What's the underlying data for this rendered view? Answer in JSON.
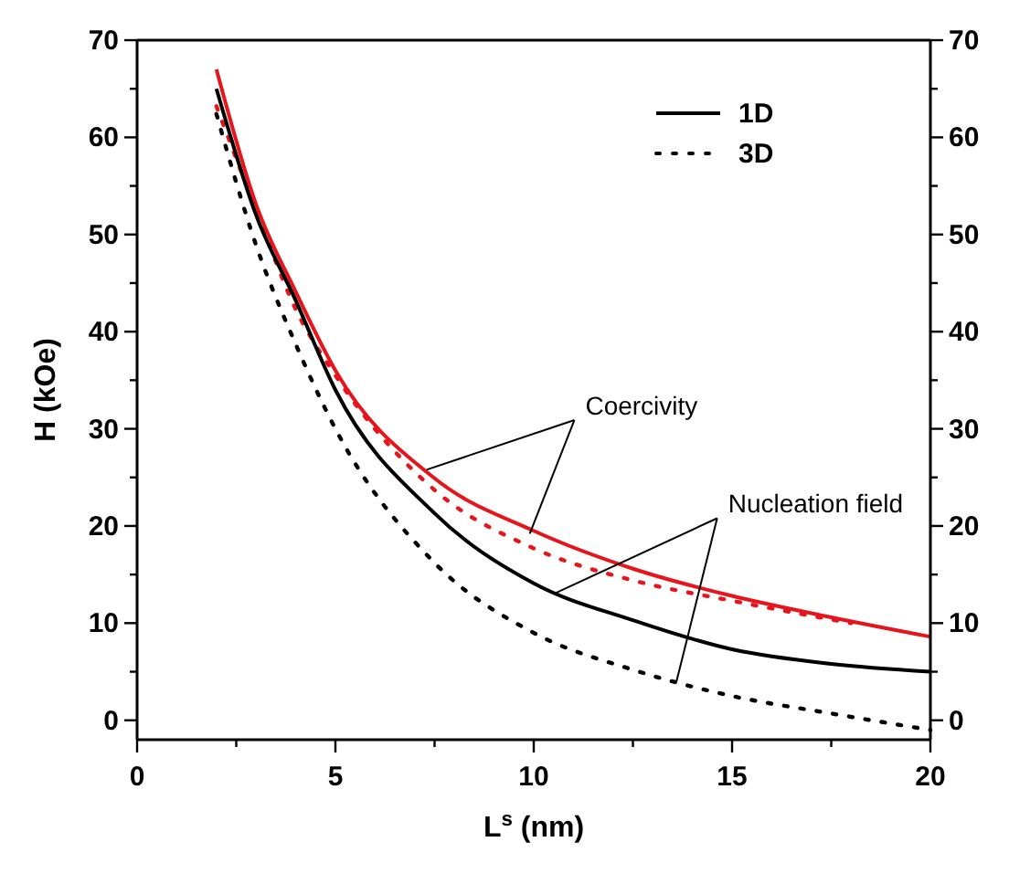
{
  "chart_data": {
    "type": "line",
    "xlabel": "L$^{s}$ (nm)",
    "ylabel": "H (kOe)",
    "xlim": [
      0,
      20
    ],
    "ylim": [
      -2,
      70
    ],
    "y2lim": [
      -2,
      70
    ],
    "xticks": [
      0,
      {
        "value": 2.5,
        "label": null
      },
      5,
      {
        "value": 7.5,
        "label": null
      },
      10,
      {
        "value": 12.5,
        "label": null
      },
      15,
      {
        "value": 17.5,
        "label": null
      },
      20
    ],
    "yticks": [
      0,
      {
        "value": 5,
        "label": null
      },
      10,
      {
        "value": 15,
        "label": null
      },
      20,
      {
        "value": 25,
        "label": null
      },
      30,
      {
        "value": 35,
        "label": null
      },
      40,
      {
        "value": 45,
        "label": null
      },
      50,
      {
        "value": 55,
        "label": null
      },
      60,
      {
        "value": 65,
        "label": null
      },
      70
    ],
    "y2ticks": [
      0,
      {
        "value": 5,
        "label": null
      },
      10,
      {
        "value": 15,
        "label": null
      },
      20,
      {
        "value": 25,
        "label": null
      },
      30,
      {
        "value": 35,
        "label": null
      },
      40,
      {
        "value": 45,
        "label": null
      },
      50,
      {
        "value": 55,
        "label": null
      },
      60,
      {
        "value": 65,
        "label": null
      },
      70
    ],
    "x": [
      2,
      3,
      4,
      5,
      7.5,
      10,
      12.5,
      15,
      17.5,
      20
    ],
    "series": [
      {
        "color": "#e8141b",
        "line_style": "solid",
        "values": [
          67,
          53.1,
          44.1,
          36,
          24.9,
          19.5,
          15.6,
          12.8,
          10.6,
          8.6
        ]
      },
      {
        "color": "#e8141b",
        "line_style": "dotted",
        "x": [
          2,
          3,
          4,
          5,
          7.5,
          10,
          12.5,
          15,
          18
        ],
        "values": [
          63.2,
          52.5,
          42.3,
          35.5,
          23.7,
          17.7,
          14.4,
          12.3,
          10
        ]
      },
      {
        "name": "1D",
        "color": "#000000",
        "line_style": "solid",
        "values": [
          65,
          52,
          43.2,
          34,
          21.3,
          14.1,
          10.3,
          7.3,
          5.8,
          5
        ]
      },
      {
        "name": "3D",
        "color": "#000000",
        "line_style": "dotted",
        "values": [
          62.4,
          48.9,
          38.7,
          30,
          16.2,
          9,
          5.2,
          2.5,
          0.7,
          -1
        ]
      }
    ],
    "legend": "top right",
    "annotations": [
      {
        "text": "Coercivity",
        "x": 9.9,
        "y": 19.2
      },
      {
        "text": "Nucleation field",
        "x": 10.5,
        "y": 13
      }
    ]
  }
}
